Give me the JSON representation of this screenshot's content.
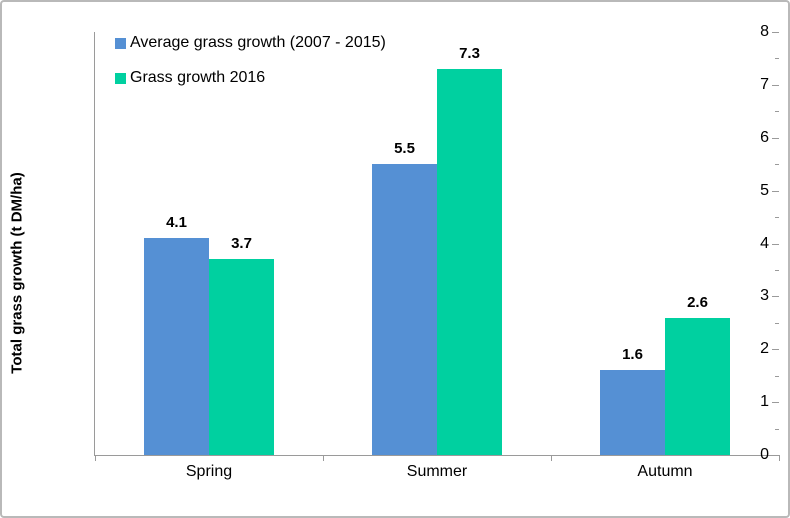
{
  "chart_data": {
    "type": "bar",
    "title": "",
    "categories": [
      "Spring",
      "Summer",
      "Autumn"
    ],
    "series": [
      {
        "name": "Average grass growth (2007 - 2015)",
        "color": "#5590D4",
        "values": [
          4.1,
          5.5,
          1.6
        ],
        "data_labels": [
          "4.1",
          "5.5",
          "1.6"
        ]
      },
      {
        "name": "Grass growth 2016",
        "color": "#00D0A0",
        "values": [
          3.7,
          7.3,
          2.6
        ],
        "data_labels": [
          "3.7",
          "7.3",
          "2.6"
        ]
      }
    ],
    "xlabel": "",
    "ylabel": "Total grass growth (t DM/ha)",
    "ylim": [
      0,
      8
    ],
    "ytick_step": 1,
    "ytick_minor_step": 0.5,
    "ytick_labels": [
      "0",
      "1",
      "2",
      "3",
      "4",
      "5",
      "6",
      "7",
      "8"
    ],
    "grid": false,
    "legend_position": "top-left"
  }
}
